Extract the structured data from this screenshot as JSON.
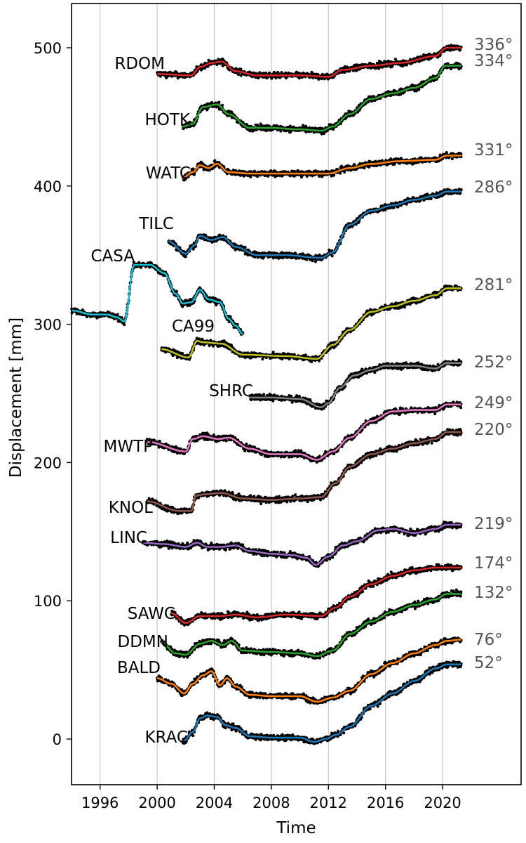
{
  "chart_data": {
    "type": "line",
    "xlabel": "Time",
    "ylabel": "Displacement [mm]",
    "xlim": [
      1994.0,
      2025.5
    ],
    "ylim": [
      -33,
      532
    ],
    "x_ticks": [
      1996,
      2000,
      2004,
      2008,
      2012,
      2016,
      2020
    ],
    "x_tick_labels": [
      "1996",
      "2000",
      "2004",
      "2008",
      "2012",
      "2016",
      "2020"
    ],
    "y_ticks": [
      0,
      100,
      200,
      300,
      400,
      500
    ],
    "y_tick_labels": [
      "0",
      "100",
      "200",
      "300",
      "400",
      "500"
    ],
    "grid": "vertical",
    "series": [
      {
        "name": "RDOM",
        "angle": "336°",
        "color": "#d62728",
        "x": [
          2000.0,
          2002.4,
          2003.0,
          2003.8,
          2004.5,
          2005.5,
          2007,
          2010,
          2012,
          2013,
          2015,
          2017,
          2019.5,
          2020.3,
          2021.3
        ],
        "y": [
          481,
          480,
          486,
          489,
          490,
          483,
          480,
          480,
          479,
          484,
          487,
          489,
          494,
          500,
          500
        ]
      },
      {
        "name": "HOTK",
        "angle": "334°",
        "color": "#2ca02c",
        "x": [
          2001.8,
          2002.5,
          2003.2,
          2004.2,
          2005,
          2006.5,
          2008,
          2010,
          2011.5,
          2012.3,
          2013.5,
          2015,
          2016.5,
          2018,
          2019.5,
          2020.2,
          2021.3
        ],
        "y": [
          443,
          445,
          457,
          459,
          452,
          442,
          442,
          441,
          440,
          443,
          452,
          463,
          467,
          471,
          478,
          487,
          487
        ]
      },
      {
        "name": "WATC",
        "angle": "331°",
        "color": "#ff7f0e",
        "x": [
          2001.8,
          2002.5,
          2003.0,
          2003.6,
          2004.2,
          2005.0,
          2006.5,
          2009,
          2012,
          2013.5,
          2015,
          2017,
          2019.5,
          2020.3,
          2021.3
        ],
        "y": [
          406,
          410,
          415,
          413,
          416,
          410,
          409,
          409,
          409,
          413,
          416,
          418,
          419,
          422,
          422
        ]
      },
      {
        "name": "TILC",
        "angle": "286°",
        "color": "#1f77b4",
        "x": [
          2000.8,
          2002.0,
          2002.6,
          2003.0,
          2003.8,
          2004.6,
          2005.5,
          2007,
          2009,
          2011.5,
          2012.3,
          2013.5,
          2015,
          2016.5,
          2018,
          2019.5,
          2020.3,
          2021.3
        ],
        "y": [
          360,
          351,
          357,
          364,
          361,
          363,
          356,
          350,
          350,
          348,
          352,
          372,
          382,
          386,
          390,
          393,
          396,
          396
        ]
      },
      {
        "name": "CASA",
        "angle": "",
        "color": "#17becf",
        "x": [
          1994.0,
          1995.5,
          1996.5,
          1997.2,
          1997.7,
          1998.4,
          1999.5,
          2000.5,
          2001.3,
          2001.8,
          2002.4,
          2003.0,
          2003.6,
          2004.4,
          2005.0,
          2005.5,
          2006.0
        ],
        "y": [
          310,
          307,
          307,
          305,
          302,
          343,
          343,
          337,
          322,
          315,
          316,
          325,
          318,
          316,
          304,
          299,
          293
        ]
      },
      {
        "name": "CA99",
        "angle": "281°",
        "color": "#bcbd22",
        "x": [
          2000.3,
          2002.2,
          2002.8,
          2003.2,
          2004.5,
          2006,
          2009,
          2011.2,
          2012.3,
          2013.5,
          2015,
          2016.5,
          2018,
          2019.5,
          2020.3,
          2021.3
        ],
        "y": [
          282,
          276,
          288,
          287,
          286,
          278,
          277,
          275,
          285,
          296,
          309,
          313,
          317,
          321,
          326,
          326
        ]
      },
      {
        "name": "SHRC",
        "angle": "252°",
        "color": "#7f7f7f",
        "x": [
          2006.5,
          2008,
          2010,
          2011.5,
          2012.0,
          2012.8,
          2013.8,
          2015,
          2016,
          2018,
          2019.5,
          2020.3,
          2021.3
        ],
        "y": [
          247,
          247,
          246,
          240,
          243,
          254,
          263,
          267,
          270,
          270,
          268,
          272,
          272
        ]
      },
      {
        "name": "MWTP",
        "angle": "249°",
        "color": "#e377c2",
        "x": [
          1999.3,
          2002.0,
          2002.5,
          2003.2,
          2004.3,
          2005.0,
          2006.5,
          2008,
          2010,
          2011.2,
          2012.3,
          2013.5,
          2015,
          2016.5,
          2018,
          2019.5,
          2020.3,
          2021.3
        ],
        "y": [
          215,
          208,
          217,
          219,
          217,
          218,
          210,
          206,
          206,
          202,
          208,
          218,
          230,
          237,
          238,
          238,
          242,
          242
        ]
      },
      {
        "name": "KNOL",
        "angle": "220°",
        "color": "#8c564b",
        "x": [
          1999.3,
          2001.5,
          2002.4,
          2002.7,
          2003.3,
          2004.5,
          2006,
          2008,
          2010,
          2011.5,
          2012.5,
          2013.5,
          2015,
          2016.5,
          2018,
          2019.5,
          2020.3,
          2021.3
        ],
        "y": [
          172,
          165,
          165,
          176,
          177,
          178,
          174,
          173,
          174,
          175,
          185,
          197,
          206,
          210,
          214,
          217,
          222,
          222
        ]
      },
      {
        "name": "LINC",
        "angle": "219°",
        "color": "#9467bd",
        "x": [
          1999.0,
          2000.5,
          2002.0,
          2002.8,
          2003.5,
          2004.5,
          2005.5,
          2006.5,
          2008,
          2009.5,
          2010.5,
          2011.1,
          2012.0,
          2013.0,
          2014.0,
          2015.5,
          2016.5,
          2018,
          2019.5,
          2020.3,
          2021.3
        ],
        "y": [
          142,
          141,
          139,
          142,
          139,
          139,
          140,
          136,
          134,
          133,
          131,
          126,
          132,
          140,
          143,
          151,
          152,
          149,
          152,
          155,
          155
        ]
      },
      {
        "name": "SAWC",
        "angle": "174°",
        "color": "#d62728",
        "x": [
          2001,
          2002.0,
          2003,
          2004.5,
          2005.5,
          2007,
          2009,
          2011.5,
          2012.5,
          2013.5,
          2015,
          2016.5,
          2018,
          2019.5,
          2020.3,
          2021.3
        ],
        "y": [
          91,
          84,
          89,
          89,
          90,
          88,
          90,
          89,
          95,
          103,
          112,
          118,
          122,
          124,
          124,
          124
        ]
      },
      {
        "name": "DDMN",
        "angle": "132°",
        "color": "#2ca02c",
        "x": [
          2000.3,
          2001.3,
          2002.0,
          2003.0,
          2003.8,
          2004.6,
          2005.2,
          2006,
          2008,
          2010,
          2011.2,
          2012.3,
          2013.5,
          2015,
          2016.5,
          2018,
          2019.5,
          2020.3,
          2021.3
        ],
        "y": [
          70,
          62,
          61,
          69,
          71,
          68,
          71,
          64,
          63,
          62,
          60,
          64,
          76,
          85,
          92,
          97,
          101,
          105,
          105
        ]
      },
      {
        "name": "BALD",
        "angle": "76°",
        "color": "#ff7f0e",
        "x": [
          2000,
          2001.0,
          2001.9,
          2002.5,
          2003.2,
          2003.8,
          2004.4,
          2004.9,
          2005.5,
          2006.5,
          2008,
          2010,
          2011.2,
          2012.3,
          2013.5,
          2015,
          2016.5,
          2018,
          2019.5,
          2020.3,
          2021.3
        ],
        "y": [
          44,
          40,
          33,
          40,
          46,
          49,
          39,
          44,
          38,
          32,
          31,
          31,
          27,
          30,
          35,
          47,
          55,
          62,
          68,
          71,
          72
        ]
      },
      {
        "name": "KRAC",
        "angle": "52°",
        "color": "#1f77b4",
        "x": [
          2001.8,
          2002.5,
          2003.0,
          2003.5,
          2004.2,
          2004.8,
          2005.5,
          2006.5,
          2008,
          2010,
          2011.0,
          2011.8,
          2012.5,
          2013.5,
          2015,
          2016.5,
          2018,
          2019.5,
          2020.3,
          2021.3
        ],
        "y": [
          -2,
          5,
          15,
          17,
          16,
          10,
          8,
          2,
          1,
          1,
          -2,
          0,
          3,
          9,
          24,
          33,
          42,
          51,
          54,
          54
        ]
      }
    ]
  }
}
